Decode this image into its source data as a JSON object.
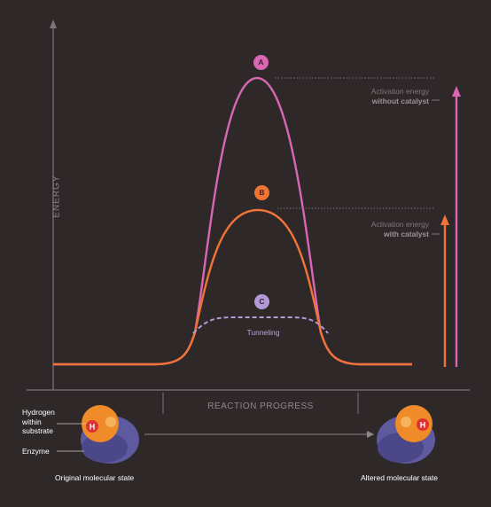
{
  "axes": {
    "y_label": "ENERGY",
    "x_label": "REACTION PROGRESS"
  },
  "curves": {
    "a": {
      "marker": "A",
      "color": "#d867b3"
    },
    "b": {
      "marker": "B",
      "color": "#ef7435"
    },
    "c": {
      "marker": "C",
      "color": "#b19ad6",
      "label": "Tunneling"
    }
  },
  "annotations": {
    "without_catalyst": {
      "line1": "Activation energy",
      "line2": "without catalyst",
      "color": "#d867b3"
    },
    "with_catalyst": {
      "line1": "Activation energy",
      "line2": "with catalyst",
      "color": "#ef7435"
    }
  },
  "molecules": {
    "hydrogen_label": "Hydrogen within substrate",
    "hydrogen_label_lines": [
      "Hydrogen",
      "within",
      "substrate"
    ],
    "enzyme_label": "Enzyme",
    "atom_symbol": "H",
    "original_state": "Original molecular state",
    "altered_state": "Altered molecular state"
  }
}
